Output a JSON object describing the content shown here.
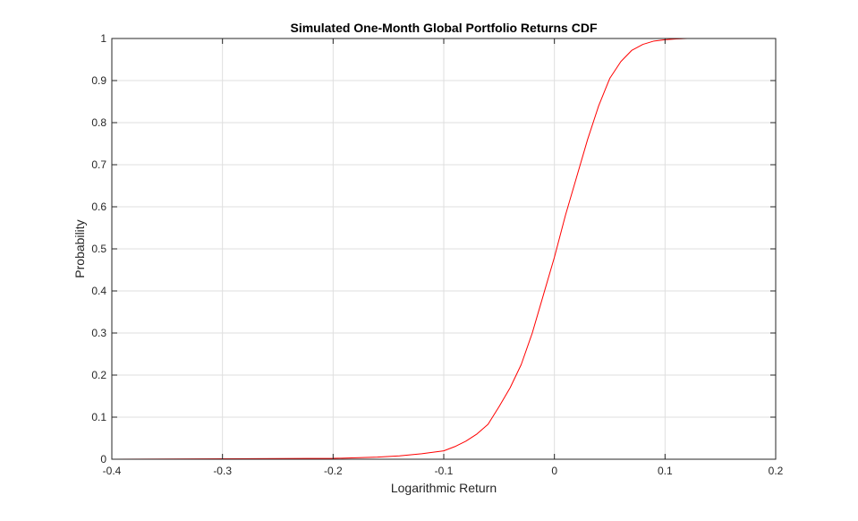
{
  "chart_data": {
    "type": "line",
    "title": "Simulated One-Month Global Portfolio Returns CDF",
    "xlabel": "Logarithmic Return",
    "ylabel": "Probability",
    "xlim": [
      -0.4,
      0.2
    ],
    "ylim": [
      0,
      1
    ],
    "grid": true,
    "legend": "none",
    "x_ticks": [
      -0.4,
      -0.3,
      -0.2,
      -0.1,
      0,
      0.1,
      0.2
    ],
    "x_tick_labels": [
      "-0.4",
      "-0.3",
      "-0.2",
      "-0.1",
      "0",
      "0.1",
      "0.2"
    ],
    "y_ticks": [
      0,
      0.1,
      0.2,
      0.3,
      0.4,
      0.5,
      0.6,
      0.7,
      0.8,
      0.9,
      1
    ],
    "y_tick_labels": [
      "0",
      "0.1",
      "0.2",
      "0.3",
      "0.4",
      "0.5",
      "0.6",
      "0.7",
      "0.8",
      "0.9",
      "1"
    ],
    "series": [
      {
        "color": "#ff0000",
        "x": [
          -0.4,
          -0.3,
          -0.2,
          -0.16,
          -0.14,
          -0.12,
          -0.1,
          -0.09,
          -0.08,
          -0.07,
          -0.06,
          -0.05,
          -0.04,
          -0.03,
          -0.02,
          -0.01,
          0,
          0.01,
          0.02,
          0.03,
          0.04,
          0.05,
          0.06,
          0.07,
          0.08,
          0.09,
          0.1,
          0.11,
          0.12,
          0.13,
          0.15
        ],
        "y": [
          0,
          0.001,
          0.002,
          0.005,
          0.008,
          0.013,
          0.02,
          0.03,
          0.043,
          0.06,
          0.083,
          0.125,
          0.17,
          0.225,
          0.3,
          0.39,
          0.48,
          0.58,
          0.67,
          0.76,
          0.84,
          0.905,
          0.945,
          0.972,
          0.986,
          0.994,
          0.997,
          0.999,
          1,
          1,
          1
        ]
      }
    ]
  }
}
